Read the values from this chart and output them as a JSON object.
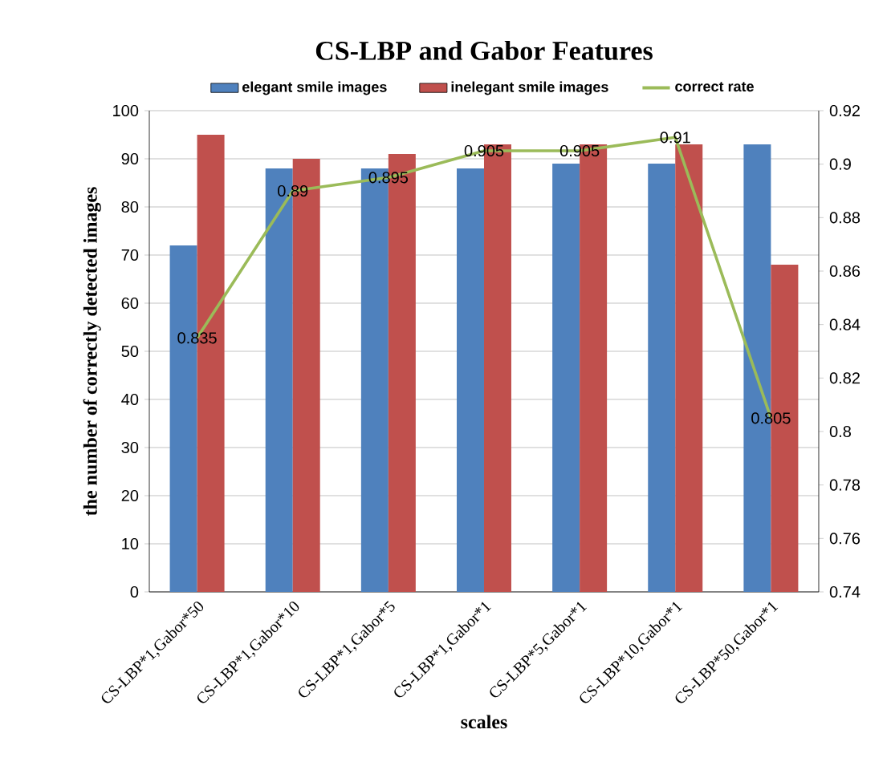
{
  "chart_data": {
    "type": "bar",
    "title": "CS-LBP and Gabor Features",
    "xlabel": "scales",
    "ylabel": "the number of correctly detected images",
    "categories": [
      "CS-LBP*1,Gabor*50",
      "CS-LBP*1,Gabor*10",
      "CS-LBP*1,Gabor*5",
      "CS-LBP*1,Gabor*1",
      "CS-LBP*5,Gabor*1",
      "CS-LBP*10,Gabor*1",
      "CS-LBP*50,Gabor*1"
    ],
    "series": [
      {
        "name": "elegant smile images",
        "color": "#4f81bd",
        "values": [
          72,
          88,
          88,
          88,
          89,
          89,
          93
        ]
      },
      {
        "name": "inelegant smile images",
        "color": "#c0504d",
        "values": [
          95,
          90,
          91,
          93,
          93,
          93,
          68
        ]
      },
      {
        "name": "correct rate",
        "type": "line",
        "axis": "y2",
        "color": "#9bbb59",
        "values": [
          0.835,
          0.89,
          0.895,
          0.905,
          0.905,
          0.91,
          0.805
        ],
        "data_labels": true
      }
    ],
    "ylim": [
      0,
      100
    ],
    "yticks": [
      0,
      10,
      20,
      30,
      40,
      50,
      60,
      70,
      80,
      90,
      100
    ],
    "y2lim": [
      0.74,
      0.92
    ],
    "y2ticks": [
      0.74,
      0.76,
      0.78,
      0.8,
      0.82,
      0.84,
      0.86,
      0.88,
      0.9,
      0.92
    ],
    "grid": "y",
    "legend": "top"
  }
}
